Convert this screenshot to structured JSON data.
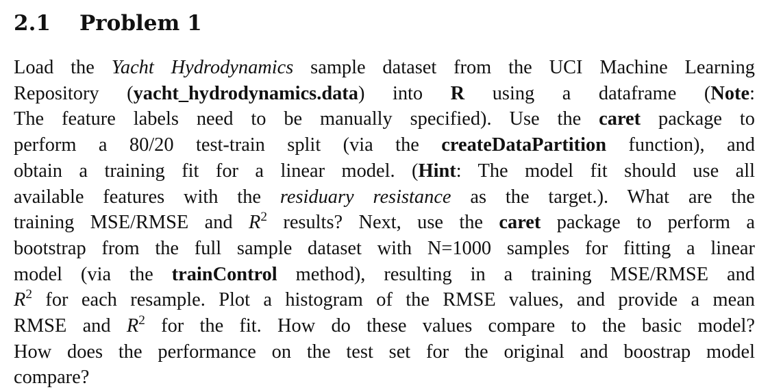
{
  "section": {
    "number": "2.1",
    "title": "Problem 1"
  },
  "paragraph": {
    "l1_a": "Load the ",
    "l1_dataset": "Yacht Hydrodynamics",
    "l1_b": " sample dataset from the UCI Machine Learning",
    "l2_a": "Repository (",
    "l2_file": "yacht_hydrodynamics.data",
    "l2_b": ") into ",
    "l2_r": "R",
    "l2_c": " using a dataframe (",
    "l2_note": "Note",
    "l2_d": ":",
    "l3_a": "The feature labels need to be manually specified).  Use the ",
    "l3_caret": "caret",
    "l3_b": " package to",
    "l4_a": "perform a 80/20 test-train split (via the ",
    "l4_fn": "createDataPartition",
    "l4_b": " function), and",
    "l5_a": "obtain a training fit for a linear model.  (",
    "l5_hint": "Hint",
    "l5_b": ":  The model fit should use all",
    "l6_a": "available features with the ",
    "l6_target": "residuary resistance",
    "l6_b": " as the target.).  What are the",
    "l7_a": "training MSE/RMSE and ",
    "l7_r": "R",
    "l7_sup": "2",
    "l7_b": " results? Next, use the ",
    "l7_caret": "caret",
    "l7_c": " package to perform a",
    "l8": "bootstrap from the full sample dataset with N=1000 samples for fitting a linear",
    "l9_a": "model (via the ",
    "l9_method": "trainControl",
    "l9_b": " method), resulting in a training MSE/RMSE and",
    "l10_r": "R",
    "l10_sup": "2",
    "l10_a": " for each resample.  Plot a histogram of the RMSE values, and provide a mean",
    "l11_a": "RMSE and ",
    "l11_r": "R",
    "l11_sup": "2",
    "l11_b": " for the fit.  How do these values compare to the basic model?",
    "l12": "How does the performance on the test set for the original and boostrap model",
    "l13": "compare?"
  }
}
